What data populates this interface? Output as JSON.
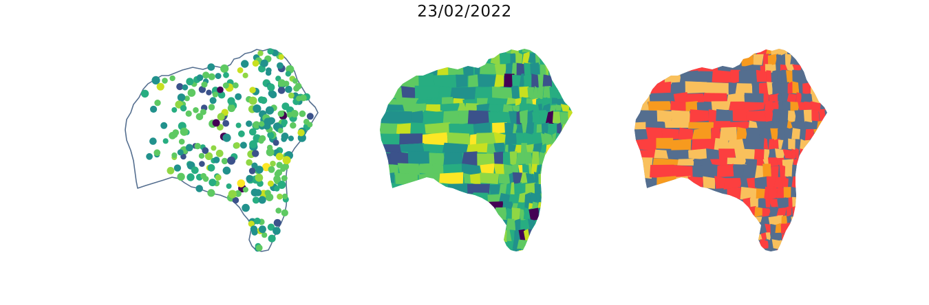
{
  "figure": {
    "title": "23/02/2022"
  },
  "palettes": {
    "viridis": [
      "#440154",
      "#3b528b",
      "#21918c",
      "#27ad81",
      "#5ec962",
      "#8fd744",
      "#c8e020",
      "#fde725"
    ],
    "categorical": [
      "#f9c05c",
      "#f79a1e",
      "#fc3f3f",
      "#546e8f"
    ]
  },
  "panels": [
    {
      "id": "points",
      "kind": "proportional-points"
    },
    {
      "id": "gradient",
      "kind": "choropleth-continuous"
    },
    {
      "id": "categories",
      "kind": "choropleth-categorical"
    }
  ]
}
